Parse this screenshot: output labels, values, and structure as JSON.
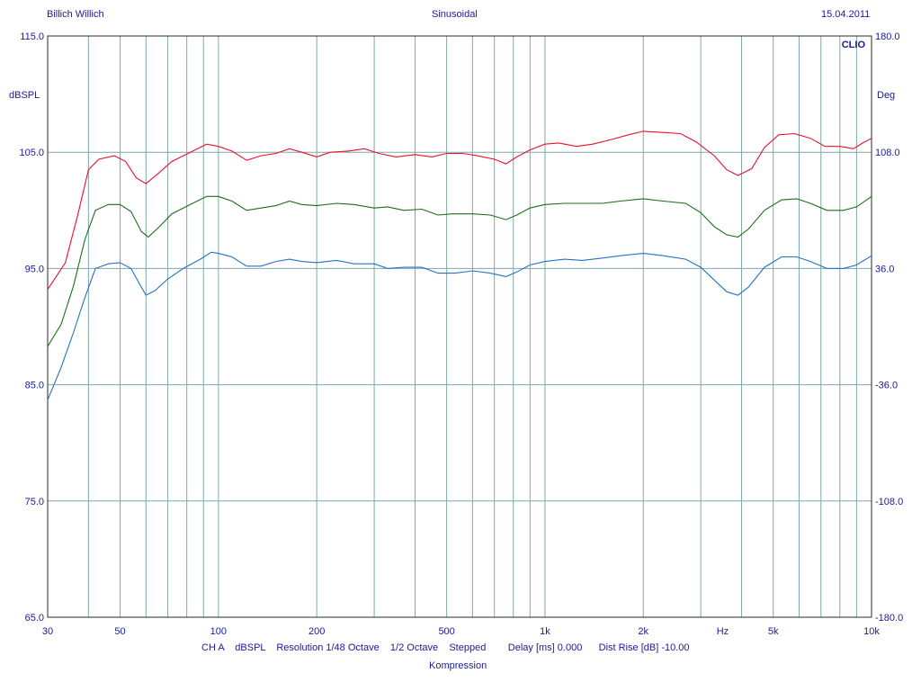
{
  "header": {
    "left": "Billich Willich",
    "center": "Sinusoidal",
    "right": "15.04.2011",
    "brand": "CLIO"
  },
  "footer": {
    "line1": "CH A    dBSPL    Resolution 1/48 Octave    1/2 Octave    Stepped        Delay [ms] 0.000      Dist Rise [dB] -10.00",
    "line2": "Kompression"
  },
  "chart_data": {
    "type": "line",
    "xscale": "log",
    "xlim": [
      30,
      10000
    ],
    "ylim": [
      65,
      115
    ],
    "ylabel": "dBSPL",
    "ylabel_right": "Deg",
    "y2lim": [
      -180,
      180
    ],
    "xunit": "Hz",
    "grid": true,
    "xticks": [
      {
        "v": 30,
        "label": "30"
      },
      {
        "v": 50,
        "label": "50"
      },
      {
        "v": 100,
        "label": "100"
      },
      {
        "v": 200,
        "label": "200"
      },
      {
        "v": 500,
        "label": "500"
      },
      {
        "v": 1000,
        "label": "1k"
      },
      {
        "v": 2000,
        "label": "2k"
      },
      {
        "v": 3500,
        "label": "Hz"
      },
      {
        "v": 5000,
        "label": "5k"
      },
      {
        "v": 10000,
        "label": "10k"
      }
    ],
    "yticks": [
      {
        "v": 115,
        "label": "115.0"
      },
      {
        "v": 105,
        "label": "105.0"
      },
      {
        "v": 95,
        "label": "95.0"
      },
      {
        "v": 85,
        "label": "85.0"
      },
      {
        "v": 75,
        "label": "75.0"
      },
      {
        "v": 65,
        "label": "65.0"
      }
    ],
    "y2ticks": [
      {
        "v": 115,
        "label": "180.0"
      },
      {
        "v": 105,
        "label": "108.0"
      },
      {
        "v": 95,
        "label": "36.0"
      },
      {
        "v": 85,
        "label": "-36.0"
      },
      {
        "v": 75,
        "label": "-108.0"
      },
      {
        "v": 65,
        "label": "-180.0"
      }
    ],
    "series": [
      {
        "color": "#e8102a",
        "points": [
          [
            30,
            93.2
          ],
          [
            34,
            95.5
          ],
          [
            37,
            99.5
          ],
          [
            40,
            103.5
          ],
          [
            43,
            104.4
          ],
          [
            48,
            104.7
          ],
          [
            52,
            104.2
          ],
          [
            56,
            102.8
          ],
          [
            60,
            102.3
          ],
          [
            65,
            103.1
          ],
          [
            72,
            104.2
          ],
          [
            82,
            105.0
          ],
          [
            92,
            105.7
          ],
          [
            100,
            105.5
          ],
          [
            110,
            105.1
          ],
          [
            122,
            104.3
          ],
          [
            135,
            104.7
          ],
          [
            150,
            104.9
          ],
          [
            165,
            105.3
          ],
          [
            180,
            105.0
          ],
          [
            200,
            104.6
          ],
          [
            220,
            105.0
          ],
          [
            250,
            105.1
          ],
          [
            280,
            105.3
          ],
          [
            310,
            104.9
          ],
          [
            350,
            104.6
          ],
          [
            400,
            104.8
          ],
          [
            450,
            104.6
          ],
          [
            500,
            104.9
          ],
          [
            560,
            104.9
          ],
          [
            620,
            104.7
          ],
          [
            700,
            104.4
          ],
          [
            760,
            104.0
          ],
          [
            820,
            104.6
          ],
          [
            900,
            105.2
          ],
          [
            1000,
            105.7
          ],
          [
            1100,
            105.8
          ],
          [
            1250,
            105.5
          ],
          [
            1400,
            105.7
          ],
          [
            1600,
            106.1
          ],
          [
            1800,
            106.5
          ],
          [
            2000,
            106.8
          ],
          [
            2300,
            106.7
          ],
          [
            2600,
            106.6
          ],
          [
            2900,
            105.9
          ],
          [
            3300,
            104.7
          ],
          [
            3600,
            103.5
          ],
          [
            3900,
            103.0
          ],
          [
            4300,
            103.6
          ],
          [
            4700,
            105.4
          ],
          [
            5200,
            106.5
          ],
          [
            5800,
            106.6
          ],
          [
            6500,
            106.2
          ],
          [
            7200,
            105.5
          ],
          [
            8000,
            105.5
          ],
          [
            8800,
            105.3
          ],
          [
            9400,
            105.8
          ],
          [
            10000,
            106.2
          ]
        ]
      },
      {
        "color": "#1a6e1a",
        "points": [
          [
            30,
            88.3
          ],
          [
            33,
            90.2
          ],
          [
            36,
            93.5
          ],
          [
            39,
            97.5
          ],
          [
            42,
            100.0
          ],
          [
            46,
            100.5
          ],
          [
            50,
            100.5
          ],
          [
            54,
            99.9
          ],
          [
            58,
            98.2
          ],
          [
            61,
            97.7
          ],
          [
            66,
            98.6
          ],
          [
            72,
            99.7
          ],
          [
            82,
            100.5
          ],
          [
            92,
            101.2
          ],
          [
            100,
            101.2
          ],
          [
            110,
            100.8
          ],
          [
            122,
            100.0
          ],
          [
            135,
            100.2
          ],
          [
            150,
            100.4
          ],
          [
            165,
            100.8
          ],
          [
            180,
            100.5
          ],
          [
            200,
            100.4
          ],
          [
            230,
            100.6
          ],
          [
            260,
            100.5
          ],
          [
            300,
            100.2
          ],
          [
            330,
            100.3
          ],
          [
            370,
            100.0
          ],
          [
            420,
            100.1
          ],
          [
            470,
            99.6
          ],
          [
            520,
            99.7
          ],
          [
            600,
            99.7
          ],
          [
            680,
            99.6
          ],
          [
            760,
            99.2
          ],
          [
            820,
            99.6
          ],
          [
            900,
            100.2
          ],
          [
            1000,
            100.5
          ],
          [
            1150,
            100.6
          ],
          [
            1300,
            100.6
          ],
          [
            1500,
            100.6
          ],
          [
            1700,
            100.8
          ],
          [
            2000,
            101.0
          ],
          [
            2300,
            100.8
          ],
          [
            2700,
            100.6
          ],
          [
            3000,
            99.8
          ],
          [
            3300,
            98.6
          ],
          [
            3600,
            97.9
          ],
          [
            3900,
            97.7
          ],
          [
            4200,
            98.4
          ],
          [
            4700,
            100.0
          ],
          [
            5300,
            100.9
          ],
          [
            5900,
            101.0
          ],
          [
            6500,
            100.6
          ],
          [
            7300,
            100.0
          ],
          [
            8200,
            100.0
          ],
          [
            9000,
            100.3
          ],
          [
            10000,
            101.2
          ]
        ]
      },
      {
        "color": "#2472c4",
        "points": [
          [
            30,
            83.7
          ],
          [
            33,
            86.5
          ],
          [
            36,
            89.5
          ],
          [
            39,
            92.5
          ],
          [
            42,
            95.0
          ],
          [
            46,
            95.4
          ],
          [
            50,
            95.5
          ],
          [
            54,
            95.0
          ],
          [
            57,
            93.8
          ],
          [
            60,
            92.7
          ],
          [
            64,
            93.1
          ],
          [
            70,
            94.1
          ],
          [
            78,
            95.0
          ],
          [
            88,
            95.8
          ],
          [
            95,
            96.4
          ],
          [
            100,
            96.3
          ],
          [
            110,
            96.0
          ],
          [
            122,
            95.2
          ],
          [
            135,
            95.2
          ],
          [
            150,
            95.6
          ],
          [
            165,
            95.8
          ],
          [
            180,
            95.6
          ],
          [
            200,
            95.5
          ],
          [
            230,
            95.7
          ],
          [
            260,
            95.4
          ],
          [
            300,
            95.4
          ],
          [
            330,
            95.0
          ],
          [
            370,
            95.1
          ],
          [
            420,
            95.1
          ],
          [
            470,
            94.6
          ],
          [
            530,
            94.6
          ],
          [
            600,
            94.8
          ],
          [
            680,
            94.6
          ],
          [
            760,
            94.3
          ],
          [
            820,
            94.7
          ],
          [
            900,
            95.3
          ],
          [
            1000,
            95.6
          ],
          [
            1150,
            95.8
          ],
          [
            1300,
            95.7
          ],
          [
            1500,
            95.9
          ],
          [
            1700,
            96.1
          ],
          [
            2000,
            96.3
          ],
          [
            2300,
            96.1
          ],
          [
            2700,
            95.8
          ],
          [
            3000,
            95.1
          ],
          [
            3300,
            94.0
          ],
          [
            3600,
            93.0
          ],
          [
            3900,
            92.7
          ],
          [
            4200,
            93.4
          ],
          [
            4700,
            95.1
          ],
          [
            5300,
            96.0
          ],
          [
            5900,
            96.0
          ],
          [
            6500,
            95.6
          ],
          [
            7300,
            95.0
          ],
          [
            8200,
            95.0
          ],
          [
            9000,
            95.3
          ],
          [
            10000,
            96.1
          ]
        ]
      }
    ]
  }
}
